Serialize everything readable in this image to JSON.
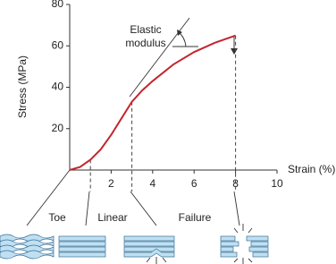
{
  "chart_data": {
    "type": "line",
    "x": [
      0,
      0.5,
      1,
      1.5,
      2,
      2.5,
      3,
      3.5,
      4,
      5,
      6,
      7,
      8
    ],
    "values": [
      0,
      1.5,
      5,
      10,
      17,
      25,
      33,
      38.5,
      43,
      51,
      57,
      61.5,
      65
    ],
    "color": "#c4262e",
    "xlim": [
      0,
      10
    ],
    "ylim": [
      0,
      80
    ],
    "xticks": [
      2,
      4,
      6,
      8,
      10
    ],
    "yticks": [
      20,
      40,
      60,
      80
    ],
    "x_label": "Strain (%)",
    "y_label": "Stress (MPa)",
    "annotation_lines": [
      "Elastic",
      "modulus"
    ],
    "regions": [
      "Toe",
      "Linear",
      "Failure"
    ]
  }
}
